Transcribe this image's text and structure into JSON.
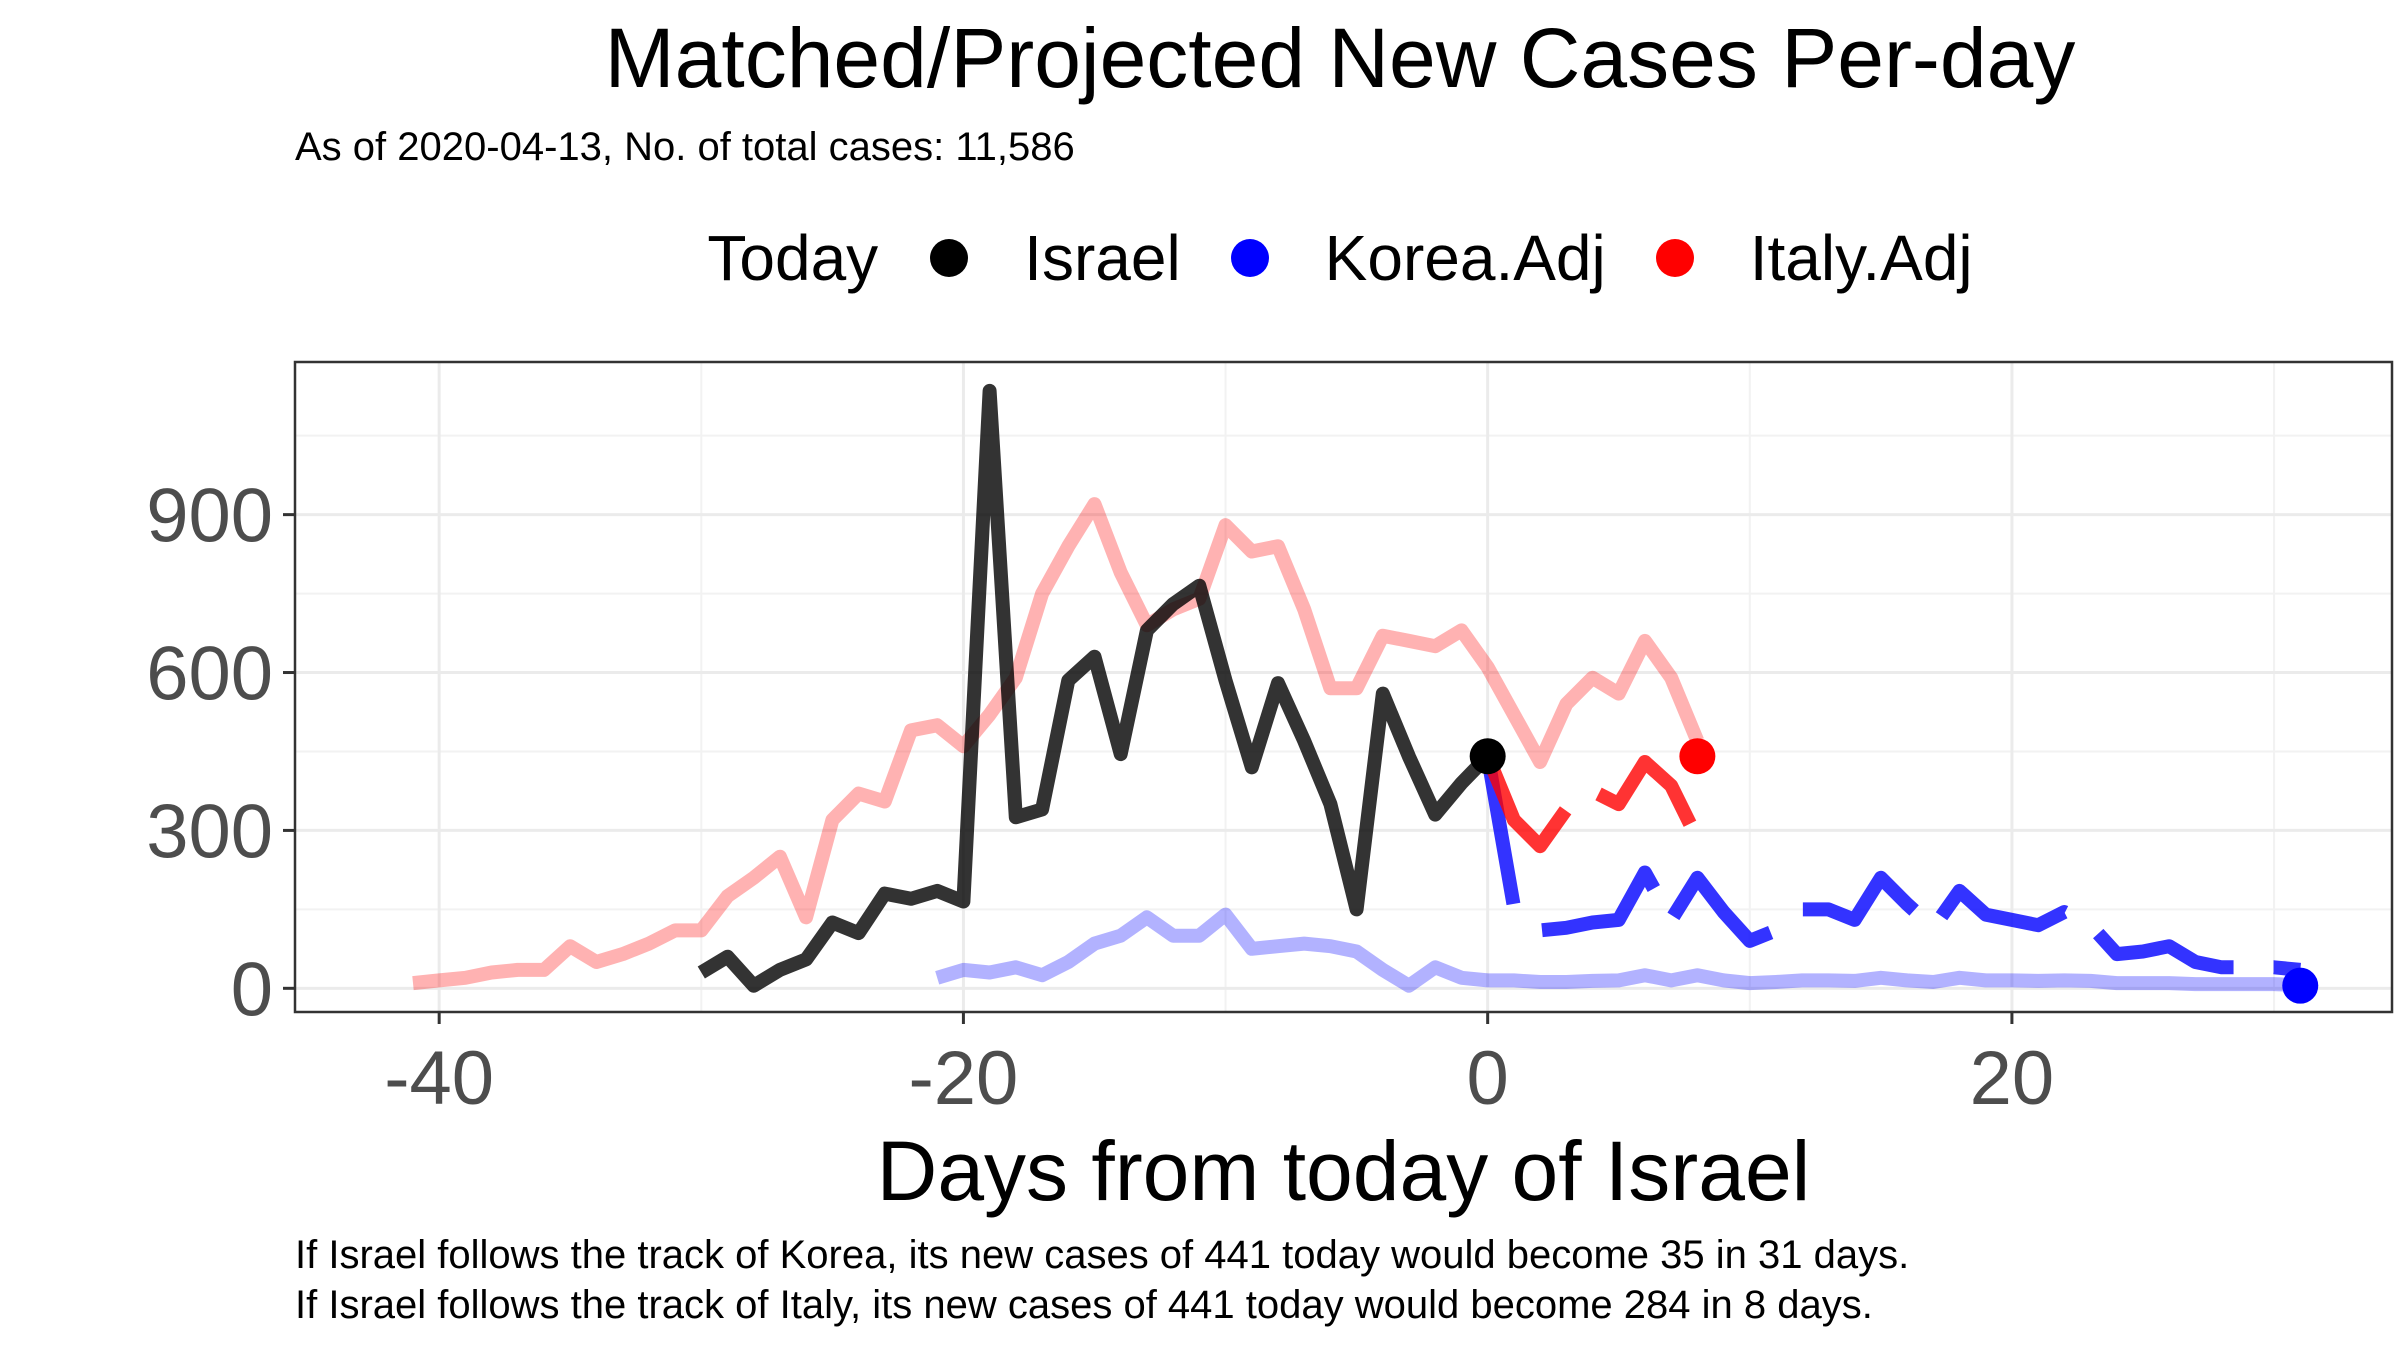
{
  "chart_data": {
    "type": "line",
    "title": "Matched/Projected New Cases Per-day",
    "subtitle": "As of 2020-04-13, No. of total cases: 11,586",
    "xlabel": "Days from today of Israel",
    "ylabel": "",
    "xlim": [
      -45.5,
      34.5
    ],
    "ylim": [
      -45,
      1190
    ],
    "x_ticks": [
      -40,
      -20,
      0,
      20
    ],
    "y_ticks": [
      0,
      300,
      600,
      900
    ],
    "x_tick_labels": [
      "-40",
      "-20",
      "0",
      "20"
    ],
    "y_tick_labels": [
      "0",
      "300",
      "600",
      "900"
    ],
    "grid": true,
    "legend": {
      "title": "Today",
      "position": "top",
      "entries": [
        {
          "label": "Israel",
          "color": "#000000"
        },
        {
          "label": "Korea.Adj",
          "color": "#0000ff"
        },
        {
          "label": "Italy.Adj",
          "color": "#ff0000"
        }
      ]
    },
    "series": [
      {
        "name": "Italy.Adj",
        "role": "matched",
        "color": "#ff0000",
        "opacity": 0.3,
        "x": [
          -41,
          -40,
          -39,
          -38,
          -37,
          -36,
          -35,
          -34,
          -33,
          -32,
          -31,
          -30,
          -29,
          -28,
          -27,
          -26,
          -25,
          -24,
          -23,
          -22,
          -21,
          -20,
          -19,
          -18,
          -17,
          -16,
          -15,
          -14,
          -13,
          -12,
          -11,
          -10,
          -9,
          -8,
          -7,
          -6,
          -5,
          -4,
          -3,
          -2,
          -1,
          0,
          1,
          2,
          3,
          4,
          5,
          6,
          7,
          8
        ],
        "y": [
          10,
          15,
          20,
          30,
          35,
          35,
          80,
          50,
          65,
          85,
          110,
          110,
          175,
          210,
          250,
          135,
          320,
          370,
          355,
          490,
          500,
          460,
          520,
          590,
          750,
          840,
          920,
          790,
          690,
          720,
          740,
          880,
          830,
          840,
          720,
          570,
          570,
          670,
          660,
          650,
          680,
          610,
          520,
          430,
          540,
          590,
          560,
          660,
          590,
          470
        ]
      },
      {
        "name": "Korea.Adj",
        "role": "matched",
        "color": "#0000ff",
        "opacity": 0.3,
        "x": [
          -21,
          -20,
          -19,
          -18,
          -17,
          -16,
          -15,
          -14,
          -13,
          -12,
          -11,
          -10,
          -9,
          -8,
          -7,
          -6,
          -5,
          -4,
          -3,
          -2,
          -1,
          0,
          1,
          2,
          3,
          4,
          5,
          6,
          7,
          8,
          9,
          10,
          11,
          12,
          13,
          14,
          15,
          16,
          17,
          18,
          19,
          20,
          21,
          22,
          23,
          24,
          25,
          26,
          27,
          28,
          29,
          30,
          31
        ],
        "y": [
          20,
          35,
          30,
          40,
          25,
          50,
          85,
          100,
          135,
          100,
          100,
          140,
          75,
          80,
          85,
          80,
          70,
          35,
          5,
          40,
          20,
          15,
          15,
          12,
          12,
          14,
          15,
          25,
          15,
          25,
          15,
          10,
          12,
          15,
          15,
          14,
          20,
          15,
          12,
          20,
          15,
          15,
          14,
          15,
          14,
          10,
          10,
          10,
          8,
          8,
          8,
          8,
          6
        ]
      },
      {
        "name": "Israel",
        "role": "actual",
        "color": "#000000",
        "opacity": 0.8,
        "x": [
          -30,
          -29,
          -28,
          -27,
          -26,
          -25,
          -24,
          -23,
          -22,
          -21,
          -20,
          -19,
          -18,
          -17,
          -16,
          -15,
          -14,
          -13,
          -12,
          -11,
          -10,
          -9,
          -8,
          -7,
          -6,
          -5,
          -4,
          -3,
          -2,
          -1,
          0
        ],
        "y": [
          30,
          60,
          5,
          35,
          55,
          125,
          105,
          180,
          170,
          185,
          165,
          1135,
          325,
          340,
          585,
          630,
          445,
          680,
          730,
          765,
          585,
          420,
          580,
          470,
          350,
          150,
          560,
          440,
          330,
          390,
          441
        ]
      },
      {
        "name": "Korea.Adj",
        "role": "projected",
        "color": "#0000ff",
        "opacity": 0.8,
        "x": [
          0,
          1,
          2,
          3,
          4,
          5,
          6,
          7,
          8,
          9,
          10,
          11,
          12,
          13,
          14,
          15,
          16,
          17,
          18,
          19,
          20,
          21,
          22,
          23,
          24,
          25,
          26,
          27,
          28,
          29,
          30,
          31
        ],
        "y": [
          441,
          155,
          110,
          115,
          125,
          130,
          220,
          130,
          210,
          145,
          90,
          110,
          150,
          150,
          130,
          210,
          160,
          115,
          185,
          140,
          130,
          120,
          145,
          120,
          65,
          70,
          80,
          50,
          40,
          40,
          40,
          35
        ]
      },
      {
        "name": "Italy.Adj",
        "role": "projected",
        "color": "#ff0000",
        "opacity": 0.8,
        "x": [
          0,
          1,
          2,
          3,
          4,
          5,
          6,
          7,
          8
        ],
        "y": [
          441,
          320,
          270,
          340,
          375,
          350,
          430,
          385,
          284
        ]
      }
    ],
    "today_points": [
      {
        "series": "Israel",
        "x": 0,
        "y": 441,
        "color": "#000000"
      },
      {
        "series": "Korea.Adj",
        "x": 31,
        "y": 5,
        "color": "#0000ff"
      },
      {
        "series": "Italy.Adj",
        "x": 8,
        "y": 441,
        "color": "#ff0000"
      }
    ]
  },
  "caption": {
    "line1": "If Israel follows the track of Korea, its new cases of 441 today would become 35 in 31 days.",
    "line2": "If Israel follows the track of Italy, its new cases of 441 today would become 284 in 8 days."
  }
}
